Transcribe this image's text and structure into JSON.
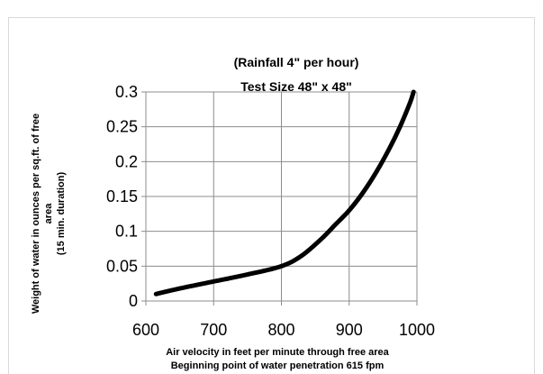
{
  "chart_data": {
    "type": "line",
    "title_lines": [
      "(Rainfall 4\" per hour)",
      "Test Size 48\" x 48\""
    ],
    "xlabel_lines": [
      "Air velocity in feet per minute through free area",
      "Beginning point of water penetration 615 fpm"
    ],
    "ylabel_lines": [
      "Weight of water in ounces per sq.ft. of free",
      "area",
      "(15 min. duration)"
    ],
    "xlim": [
      600,
      1000
    ],
    "ylim": [
      0,
      0.3
    ],
    "x_ticks": [
      "600",
      "700",
      "800",
      "900",
      "1000"
    ],
    "y_ticks": [
      "0",
      "0.05",
      "0.1",
      "0.15",
      "0.2",
      "0.25",
      "0.3"
    ],
    "grid": true,
    "legend": "none",
    "series": [
      {
        "color": "#000000",
        "x": [
          615,
          650,
          700,
          750,
          800,
          830,
          860,
          880,
          900,
          920,
          940,
          960,
          975,
          990,
          995
        ],
        "y": [
          0.01,
          0.018,
          0.028,
          0.038,
          0.05,
          0.065,
          0.09,
          0.11,
          0.13,
          0.155,
          0.185,
          0.22,
          0.25,
          0.285,
          0.3
        ]
      }
    ]
  }
}
